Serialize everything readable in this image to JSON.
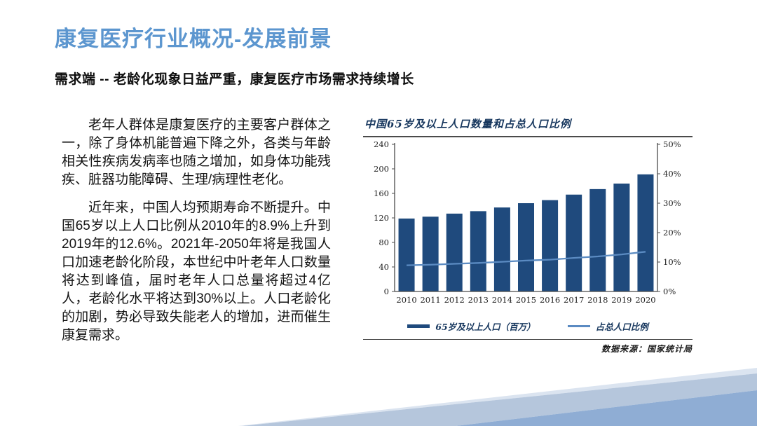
{
  "slide": {
    "title": "康复医疗行业概况-发展前景",
    "subtitle": "需求端 -- 老龄化现象日益严重，康复医疗市场需求持续增长",
    "paragraphs": [
      "老年人群体是康复医疗的主要客户群体之一，除了身体机能普遍下降之外，各类与年龄相关性疾病发病率也随之增加，如身体功能残疾、脏器功能障碍、生理/病理性老化。",
      "近年来，中国人均预期寿命不断提升。中国65岁以上人口比例从2010年的8.9%上升到2019年的12.6%。2021年-2050年将是我国人口加速老龄化阶段，本世纪中叶老年人口数量将达到峰值，届时老年人口总量将超过4亿人，老龄化水平将达到30%以上。人口老龄化的加剧，势必导致失能老人的增加，进而催生康复需求。"
    ],
    "source_note": "数据来源：国家统计局"
  },
  "colors": {
    "title_blue": "#5c96cf",
    "bar_navy": "#1f4a7d",
    "line_blue": "#5b8bc2",
    "figure_text": "#17375e",
    "axis_gray": "#4a4a4a",
    "deco_light_band": "#b5c6dc",
    "deco_medium_blue": "#8fadd4",
    "deco_faint": "#dbe4f0"
  },
  "chart_data": {
    "type": "bar",
    "title": "中国65岁及以上人口数量和占总人口比例",
    "categories": [
      "2010",
      "2011",
      "2012",
      "2013",
      "2014",
      "2015",
      "2016",
      "2017",
      "2018",
      "2019",
      "2020"
    ],
    "series": [
      {
        "name": "65岁及以上人口（百万）",
        "type": "bar",
        "axis": "left",
        "color": "#1f4a7d",
        "values": [
          119,
          122,
          127,
          131,
          137,
          144,
          149,
          158,
          167,
          176,
          191
        ]
      },
      {
        "name": "占总人口比例",
        "type": "line",
        "axis": "right",
        "color": "#5b8bc2",
        "values": [
          8.9,
          9.1,
          9.4,
          9.7,
          10.1,
          10.5,
          10.8,
          11.4,
          11.9,
          12.6,
          13.5
        ]
      }
    ],
    "left_axis": {
      "min": 0,
      "max": 240,
      "ticks": [
        0,
        40,
        80,
        120,
        160,
        200,
        240
      ]
    },
    "right_axis": {
      "min": 0,
      "max": 50,
      "ticks": [
        0,
        10,
        20,
        30,
        40,
        50
      ],
      "suffix": "%"
    },
    "legend_position": "bottom",
    "grid": false
  }
}
